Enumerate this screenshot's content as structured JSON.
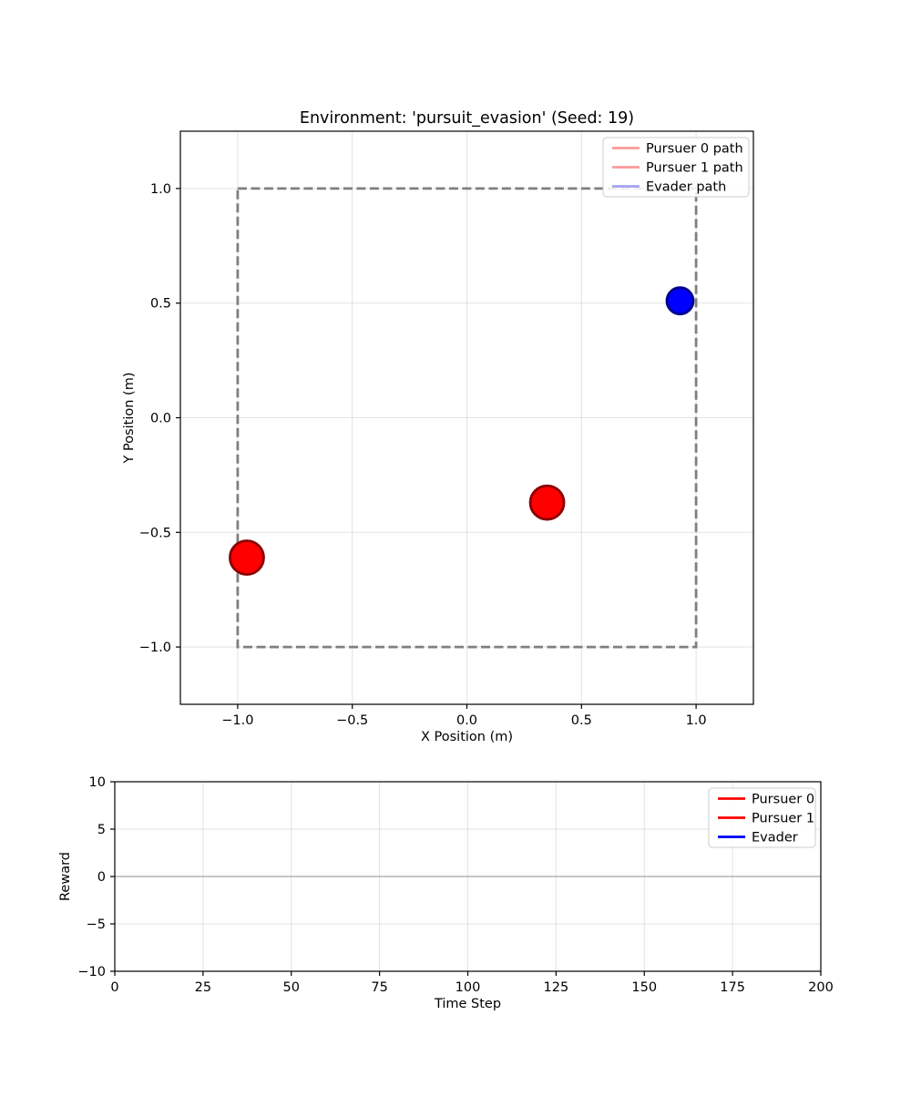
{
  "figure": {
    "background": "#ffffff",
    "text_color": "#000000",
    "grid_color": "#b0b0b0"
  },
  "chart_data": [
    {
      "id": "environment",
      "type": "scatter",
      "title": "Environment: 'pursuit_evasion' (Seed: 19)",
      "xlabel": "X Position (m)",
      "ylabel": "Y Position (m)",
      "xlim": [
        -1.25,
        1.25
      ],
      "ylim": [
        -1.25,
        1.25
      ],
      "xtick_values": [
        -1.0,
        -0.5,
        0.0,
        0.5,
        1.0
      ],
      "xtick_labels": [
        "−1.0",
        "−0.5",
        "0.0",
        "0.5",
        "1.0"
      ],
      "ytick_values": [
        1.0,
        0.5,
        0.0,
        -0.5,
        -1.0
      ],
      "ytick_labels": [
        "1.0",
        "0.5",
        "0.0",
        "−0.5",
        "−1.0"
      ],
      "grid": true,
      "legend_position": "upper right",
      "boundary": {
        "xmin": -1.0,
        "xmax": 1.0,
        "ymin": -1.0,
        "ymax": 1.0,
        "color": "#7f7f7f",
        "style": "dashed"
      },
      "agents": [
        {
          "name": "Pursuer 0",
          "x": -0.96,
          "y": -0.61,
          "fill": "#ff0000",
          "edge": "#8b0000",
          "radius": 18.5
        },
        {
          "name": "Pursuer 1",
          "x": 0.35,
          "y": -0.37,
          "fill": "#ff0000",
          "edge": "#8b0000",
          "radius": 18.5
        },
        {
          "name": "Evader",
          "x": 0.93,
          "y": 0.51,
          "fill": "#0000ff",
          "edge": "#00008b",
          "radius": 14.5
        }
      ],
      "legend": [
        {
          "label": "Pursuer 0 path",
          "color": "#fb9a9a"
        },
        {
          "label": "Pursuer 1 path",
          "color": "#fb9a9a"
        },
        {
          "label": "Evader path",
          "color": "#a3a3f0"
        }
      ]
    },
    {
      "id": "reward",
      "type": "line",
      "title": "",
      "xlabel": "Time Step",
      "ylabel": "Reward",
      "xlim": [
        0,
        200
      ],
      "ylim": [
        -10,
        10
      ],
      "xtick_values": [
        0,
        25,
        50,
        75,
        100,
        125,
        150,
        175,
        200
      ],
      "xtick_labels": [
        "0",
        "25",
        "50",
        "75",
        "100",
        "125",
        "150",
        "175",
        "200"
      ],
      "ytick_values": [
        10,
        5,
        0,
        -5,
        -10
      ],
      "ytick_labels": [
        "10",
        "5",
        "0",
        "−5",
        "−10"
      ],
      "grid": true,
      "zero_line": true,
      "legend_position": "upper right",
      "series": [
        {
          "name": "Pursuer 0",
          "color": "#ff0000",
          "x": [],
          "y": []
        },
        {
          "name": "Pursuer 1",
          "color": "#ff0000",
          "x": [],
          "y": []
        },
        {
          "name": "Evader",
          "color": "#0000ff",
          "x": [],
          "y": []
        }
      ],
      "legend": [
        {
          "label": "Pursuer 0",
          "color": "#ff0000"
        },
        {
          "label": "Pursuer 1",
          "color": "#ff0000"
        },
        {
          "label": "Evader",
          "color": "#0000ff"
        }
      ]
    }
  ]
}
